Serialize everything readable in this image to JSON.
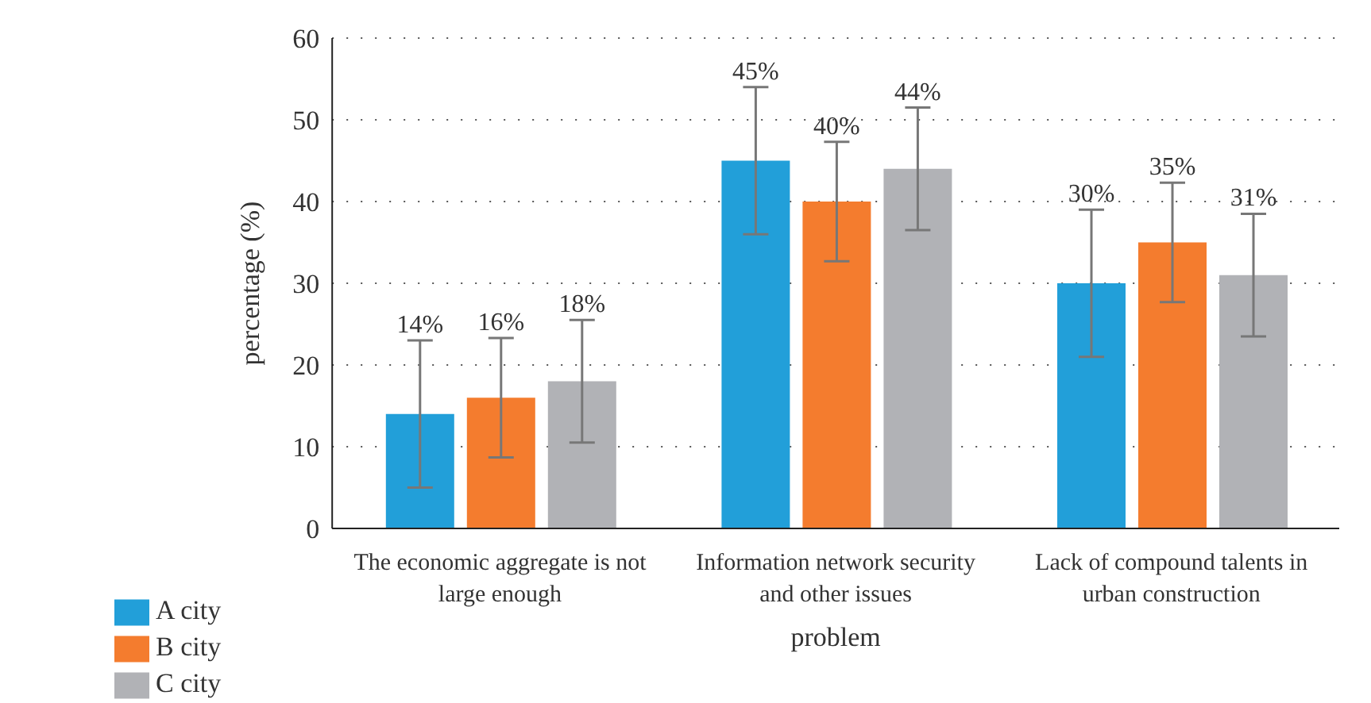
{
  "chart_data": {
    "type": "bar",
    "xlabel": "problem",
    "ylabel": "percentage (%)",
    "categories": [
      "The economic aggregate is not large enough",
      "Information network security and other issues",
      "Lack of compound talents in urban construction"
    ],
    "series": [
      {
        "name": "A city",
        "color": "#229fd9",
        "values": [
          14,
          45,
          30
        ],
        "errors": [
          9,
          9,
          9
        ],
        "value_labels": [
          "14%",
          "45%",
          "30%"
        ]
      },
      {
        "name": "B city",
        "color": "#f47c2e",
        "values": [
          16,
          40,
          35
        ],
        "errors": [
          7.3,
          7.3,
          7.3
        ],
        "value_labels": [
          "16%",
          "40%",
          "35%"
        ]
      },
      {
        "name": "C city",
        "color": "#b1b2b6",
        "values": [
          18,
          44,
          31
        ],
        "errors": [
          7.5,
          7.5,
          7.5
        ],
        "value_labels": [
          "18%",
          "44%",
          "31%"
        ]
      }
    ],
    "ylim": [
      0,
      60
    ],
    "yticks": [
      0,
      10,
      20,
      30,
      40,
      50,
      60
    ],
    "grid": "y",
    "legend": "bottom left"
  }
}
